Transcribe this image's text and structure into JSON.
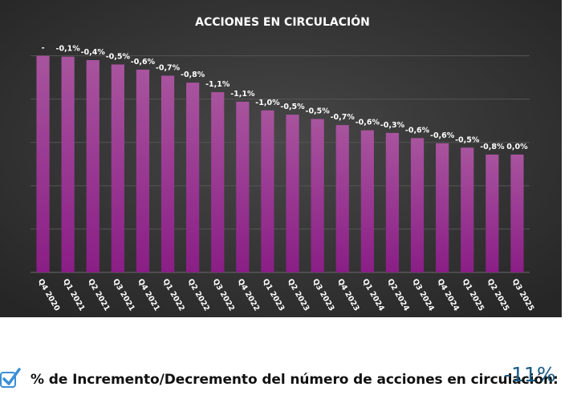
{
  "chart_data": {
    "type": "bar",
    "title": "ACCIONES EN CIRCULACIÓN",
    "categories": [
      "Q4 2020",
      "Q1 2021",
      "Q2 2021",
      "Q3 2021",
      "Q4 2021",
      "Q1 2022",
      "Q2 2022",
      "Q3 2022",
      "Q4 2022",
      "Q1 2023",
      "Q2 2023",
      "Q3 2023",
      "Q4 2023",
      "Q1 2024",
      "Q2 2024",
      "Q3 2024",
      "Q4 2024",
      "Q1 2025",
      "Q2 2025",
      "Q3 2025"
    ],
    "values": [
      100.0,
      99.9,
      99.5,
      99.0,
      98.4,
      97.7,
      96.9,
      95.8,
      94.7,
      93.7,
      93.2,
      92.7,
      92.0,
      91.4,
      91.1,
      90.5,
      89.9,
      89.4,
      88.6,
      88.6
    ],
    "data_labels": [
      "-",
      "-0,1%",
      "-0,4%",
      "-0,5%",
      "-0,6%",
      "-0,7%",
      "-0,8%",
      "-1,1%",
      "-1,1%",
      "-1,0%",
      "-0,5%",
      "-0,5%",
      "-0,7%",
      "-0,6%",
      "-0,3%",
      "-0,6%",
      "-0,6%",
      "-0,5%",
      "-0,8%",
      "0,0%"
    ],
    "ylim": [
      75,
      102
    ],
    "xlabel": "",
    "ylabel": "",
    "grid": true,
    "legend": "none",
    "colors": {
      "background": "#3a3a3a",
      "bar_top": "#a8549e",
      "bar_bottom": "#8a1e86",
      "label": "#ffffff",
      "grid": "#555555"
    }
  },
  "footer": {
    "icon": "checkmark-icon",
    "label": "% de Incremento/Decremento del número de acciones en circulación:",
    "value": "-11%",
    "value_color": "#1b5c84",
    "icon_color": "#3a8fd6"
  }
}
